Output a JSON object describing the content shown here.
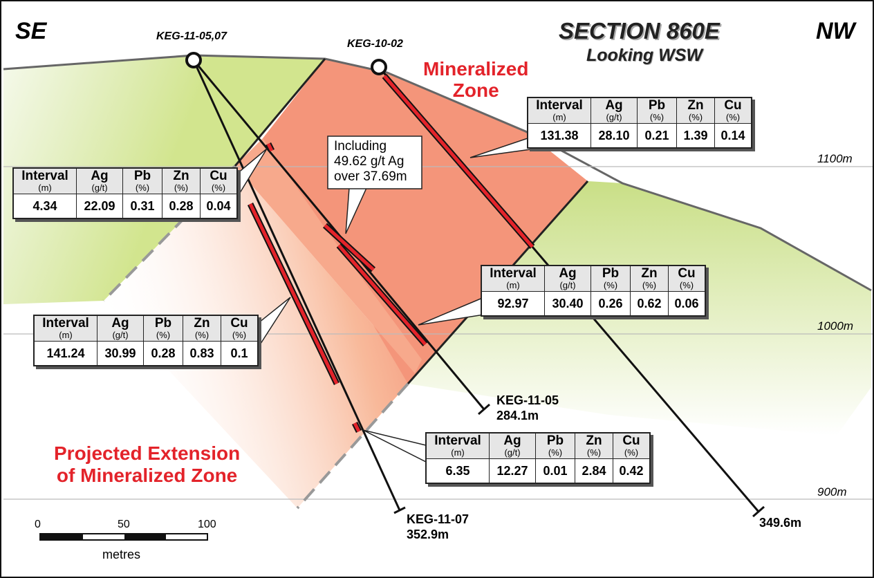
{
  "header": {
    "title": "SECTION 860E",
    "subtitle": "Looking WSW",
    "direction_left": "SE",
    "direction_right": "NW"
  },
  "zone_labels": {
    "mineralized": [
      "Mineralized",
      "Zone"
    ],
    "projected": [
      "Projected Extension",
      "of Mineralized Zone"
    ]
  },
  "callout": [
    "Including",
    "49.62 g/t Ag",
    "over 37.69m"
  ],
  "elevations": [
    "1100m",
    "1000m",
    "900m"
  ],
  "collars": [
    "KEG-11-05,07",
    "KEG-10-02"
  ],
  "hole_ends": [
    {
      "name": "KEG-11-05",
      "depth": "284.1m"
    },
    {
      "name": "KEG-11-07",
      "depth": "352.9m"
    },
    {
      "depth": "349.6m"
    }
  ],
  "scale_bar": {
    "ticks": [
      0,
      50,
      100
    ],
    "unit": "metres"
  },
  "table_header": [
    {
      "name": "Interval",
      "unit": "(m)"
    },
    {
      "name": "Ag",
      "unit": "(g/t)"
    },
    {
      "name": "Pb",
      "unit": "(%)"
    },
    {
      "name": "Zn",
      "unit": "(%)"
    },
    {
      "name": "Cu",
      "unit": "(%)"
    }
  ],
  "tables": [
    [
      "131.38",
      "28.10",
      "0.21",
      "1.39",
      "0.14"
    ],
    [
      "4.34",
      "22.09",
      "0.31",
      "0.28",
      "0.04"
    ],
    [
      "92.97",
      "30.40",
      "0.26",
      "0.62",
      "0.06"
    ],
    [
      "141.24",
      "30.99",
      "0.28",
      "0.83",
      "0.1"
    ],
    [
      "6.35",
      "12.27",
      "0.01",
      "2.84",
      "0.42"
    ]
  ]
}
